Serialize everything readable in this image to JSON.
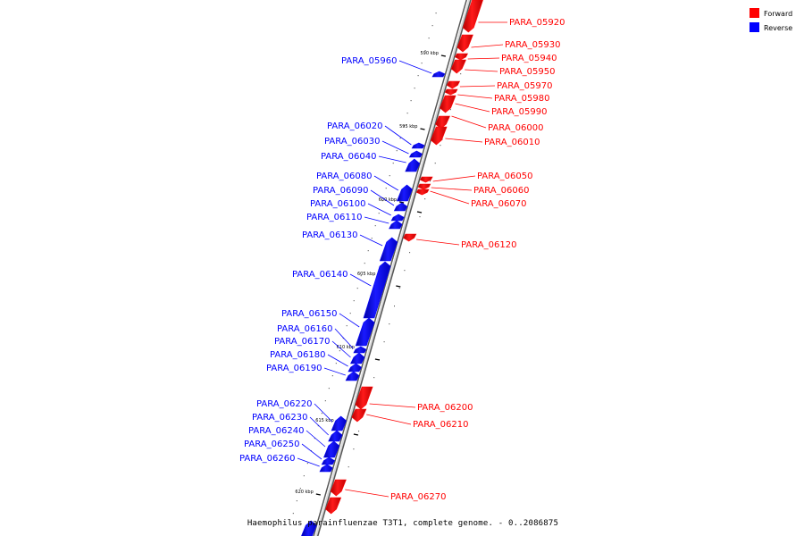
{
  "legend": {
    "forward": {
      "label": "Forward",
      "color": "#ff0000"
    },
    "reverse": {
      "label": "Reverse",
      "color": "#0000ff"
    }
  },
  "caption": "Haemophilus parainfluenzae T3T1, complete genome. - 0..2086875",
  "ticks": [
    {
      "label": "590 kbp"
    },
    {
      "label": "595 kbp"
    },
    {
      "label": "600 kbp"
    },
    {
      "label": "605 kbp"
    },
    {
      "label": "610 kbp"
    },
    {
      "label": "615 kbp"
    },
    {
      "label": "620 kbp"
    }
  ],
  "genes": [
    {
      "id": "PARA_05920",
      "strand": "forward"
    },
    {
      "id": "PARA_05930",
      "strand": "forward"
    },
    {
      "id": "PARA_05940",
      "strand": "forward"
    },
    {
      "id": "PARA_05950",
      "strand": "forward"
    },
    {
      "id": "PARA_05960",
      "strand": "reverse"
    },
    {
      "id": "PARA_05970",
      "strand": "forward"
    },
    {
      "id": "PARA_05980",
      "strand": "forward"
    },
    {
      "id": "PARA_05990",
      "strand": "forward"
    },
    {
      "id": "PARA_06000",
      "strand": "forward"
    },
    {
      "id": "PARA_06010",
      "strand": "forward"
    },
    {
      "id": "PARA_06020",
      "strand": "reverse"
    },
    {
      "id": "PARA_06030",
      "strand": "reverse"
    },
    {
      "id": "PARA_06040",
      "strand": "reverse"
    },
    {
      "id": "PARA_06050",
      "strand": "forward"
    },
    {
      "id": "PARA_06060",
      "strand": "forward"
    },
    {
      "id": "PARA_06070",
      "strand": "forward"
    },
    {
      "id": "PARA_06080",
      "strand": "reverse"
    },
    {
      "id": "PARA_06090",
      "strand": "reverse"
    },
    {
      "id": "PARA_06100",
      "strand": "reverse"
    },
    {
      "id": "PARA_06110",
      "strand": "reverse"
    },
    {
      "id": "PARA_06120",
      "strand": "forward"
    },
    {
      "id": "PARA_06130",
      "strand": "reverse"
    },
    {
      "id": "PARA_06140",
      "strand": "reverse"
    },
    {
      "id": "PARA_06150",
      "strand": "reverse"
    },
    {
      "id": "PARA_06160",
      "strand": "reverse"
    },
    {
      "id": "PARA_06170",
      "strand": "reverse"
    },
    {
      "id": "PARA_06180",
      "strand": "reverse"
    },
    {
      "id": "PARA_06190",
      "strand": "reverse"
    },
    {
      "id": "PARA_06200",
      "strand": "forward"
    },
    {
      "id": "PARA_06210",
      "strand": "forward"
    },
    {
      "id": "PARA_06220",
      "strand": "reverse"
    },
    {
      "id": "PARA_06230",
      "strand": "reverse"
    },
    {
      "id": "PARA_06240",
      "strand": "reverse"
    },
    {
      "id": "PARA_06250",
      "strand": "reverse"
    },
    {
      "id": "PARA_06260",
      "strand": "reverse"
    },
    {
      "id": "PARA_06270",
      "strand": "forward"
    }
  ]
}
